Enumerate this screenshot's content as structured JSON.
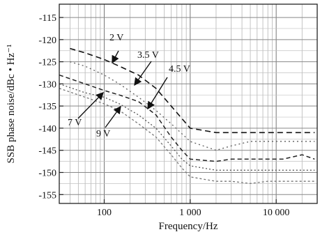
{
  "chart_data": {
    "type": "line",
    "xlabel": "Frequency/Hz",
    "ylabel": "SSB phase noise/dBc • Hz⁻¹",
    "x_scale": "log",
    "xlim": [
      30,
      30000
    ],
    "ylim": [
      -157,
      -112
    ],
    "grid": true,
    "x_ticks": [
      {
        "value": 100,
        "label": "100"
      },
      {
        "value": 1000,
        "label": "1 000"
      },
      {
        "value": 10000,
        "label": "10 000"
      }
    ],
    "y_ticks": [
      {
        "value": -115,
        "label": "-115"
      },
      {
        "value": -120,
        "label": "-120"
      },
      {
        "value": -125,
        "label": "-125"
      },
      {
        "value": -130,
        "label": "-130"
      },
      {
        "value": -135,
        "label": "-135"
      },
      {
        "value": -140,
        "label": "-140"
      },
      {
        "value": -145,
        "label": "-145"
      },
      {
        "value": -150,
        "label": "-150"
      },
      {
        "value": -155,
        "label": "-155"
      }
    ],
    "series": [
      {
        "name": "2 V",
        "color": "#111111",
        "dash": "8,5",
        "width": 1.6,
        "x": [
          40,
          60,
          100,
          150,
          250,
          400,
          600,
          1000,
          2000,
          3000,
          5000,
          8000,
          12000,
          20000,
          28000
        ],
        "y": [
          -122,
          -123,
          -124.5,
          -126,
          -128,
          -131,
          -135,
          -140,
          -141,
          -141,
          -141,
          -141,
          -141,
          -141,
          -141
        ]
      },
      {
        "name": "3.5 V",
        "color": "#666666",
        "dash": "2,4",
        "width": 1.4,
        "x": [
          40,
          60,
          100,
          150,
          250,
          400,
          600,
          1000,
          2000,
          3000,
          5000,
          8000,
          12000,
          20000,
          28000
        ],
        "y": [
          -125,
          -126,
          -128,
          -130,
          -133,
          -136,
          -139,
          -143,
          -145,
          -144,
          -143,
          -143,
          -143,
          -143,
          -143
        ]
      },
      {
        "name": "4.5 V",
        "color": "#222222",
        "dash": "6,4",
        "width": 1.5,
        "x": [
          30,
          60,
          100,
          150,
          250,
          400,
          600,
          800,
          1000,
          2000,
          3000,
          5000,
          8000,
          12000,
          20000,
          28000
        ],
        "y": [
          -128,
          -130,
          -131.5,
          -132.5,
          -134,
          -137,
          -142,
          -145,
          -147,
          -147.5,
          -147,
          -147,
          -147,
          -147,
          -146,
          -147
        ]
      },
      {
        "name": "7 V",
        "color": "#555555",
        "dash": "2,3",
        "width": 1.3,
        "x": [
          30,
          60,
          100,
          150,
          250,
          400,
          600,
          800,
          1000,
          2000,
          3000,
          5000,
          8000,
          12000,
          20000,
          28000
        ],
        "y": [
          -130,
          -132,
          -133,
          -134.5,
          -137,
          -140,
          -144,
          -147,
          -148.5,
          -149.5,
          -149.5,
          -149.5,
          -149.5,
          -149.5,
          -149.5,
          -149.5
        ]
      },
      {
        "name": "9 V",
        "color": "#777777",
        "dash": "3,3",
        "width": 1.3,
        "x": [
          30,
          60,
          100,
          150,
          250,
          400,
          600,
          800,
          1000,
          2000,
          3000,
          5000,
          8000,
          12000,
          20000,
          28000
        ],
        "y": [
          -131,
          -133,
          -134.5,
          -136,
          -139,
          -142,
          -146,
          -149,
          -151,
          -152,
          -152,
          -152.5,
          -152,
          -152,
          -152,
          -152
        ]
      }
    ],
    "annotations": [
      {
        "text": "2 V"
      },
      {
        "text": "3.5 V"
      },
      {
        "text": "4.5 V"
      },
      {
        "text": "7 V"
      },
      {
        "text": "9 V"
      }
    ]
  }
}
